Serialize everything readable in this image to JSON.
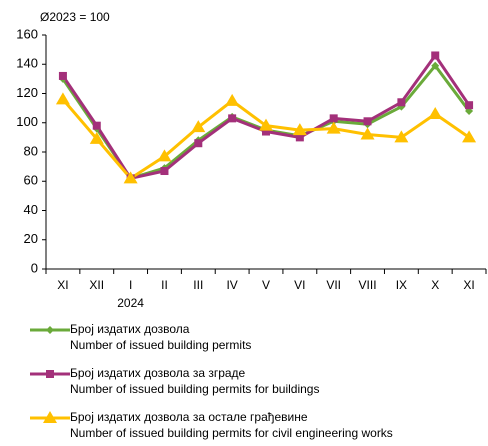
{
  "chart_data": {
    "type": "line",
    "annotation": "Ø2023 = 100",
    "categories": [
      "XI",
      "XII",
      "I",
      "II",
      "III",
      "IV",
      "V",
      "VI",
      "VII",
      "VIII",
      "IX",
      "X",
      "XI"
    ],
    "year_label": "2024",
    "series": [
      {
        "name": "Број издатих дозвола",
        "name_en": "Number  of  issued building permits",
        "color": "#6aaa3a",
        "marker": "diamond",
        "values": [
          130,
          96,
          62,
          69,
          88,
          104,
          95,
          91,
          101,
          99,
          111,
          139,
          108
        ]
      },
      {
        "name": "Број издатих дозвола за зграде",
        "name_en": "Number  of  issued building permits for buildings",
        "color": "#a3307a",
        "marker": "square",
        "values": [
          132,
          98,
          62,
          67,
          86,
          103,
          94,
          90,
          103,
          101,
          114,
          146,
          112
        ]
      },
      {
        "name": "Број издатих дозвола за остале грађевине",
        "name_en": "Number  of  issued building permits for civil engineering works",
        "color": "#ffc000",
        "marker": "triangle",
        "values": [
          116,
          89,
          62,
          77,
          97,
          115,
          98,
          95,
          96,
          92,
          90,
          106,
          90
        ]
      }
    ],
    "ylim": [
      0,
      160
    ],
    "yticks": [
      0,
      20,
      40,
      60,
      80,
      100,
      120,
      140,
      160
    ],
    "grid": false
  }
}
